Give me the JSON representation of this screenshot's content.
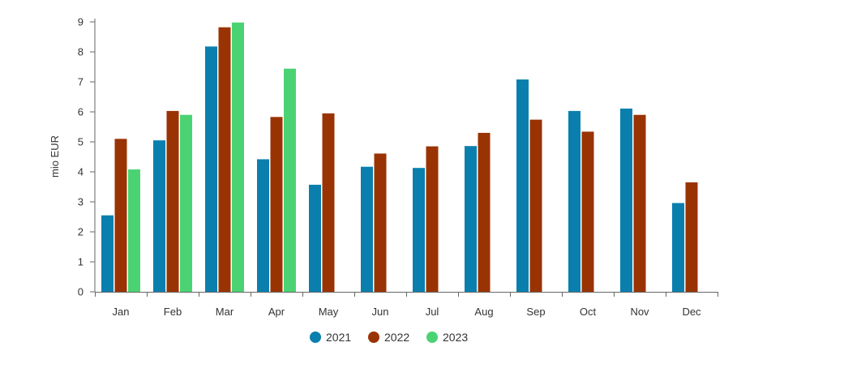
{
  "chart_data": {
    "type": "bar",
    "ylabel": "mio EUR",
    "xlabel": "",
    "ylim": [
      0,
      9
    ],
    "yticks": [
      0,
      1,
      2,
      3,
      4,
      5,
      6,
      7,
      8,
      9
    ],
    "grid": false,
    "legend_position": "bottom-center",
    "categories": [
      "Jan",
      "Feb",
      "Mar",
      "Apr",
      "May",
      "Jun",
      "Jul",
      "Aug",
      "Sep",
      "Oct",
      "Nov",
      "Dec"
    ],
    "series": [
      {
        "name": "2021",
        "color": "#0a7fae",
        "values": [
          2.55,
          5.05,
          8.18,
          4.42,
          3.57,
          4.17,
          4.13,
          4.86,
          7.08,
          6.03,
          6.11,
          2.96
        ]
      },
      {
        "name": "2022",
        "color": "#9a3303",
        "values": [
          5.1,
          6.03,
          8.82,
          5.83,
          5.95,
          4.61,
          4.85,
          5.3,
          5.74,
          5.34,
          5.9,
          3.65
        ]
      },
      {
        "name": "2023",
        "color": "#4bd373",
        "values": [
          4.08,
          5.9,
          8.98,
          7.44,
          null,
          null,
          null,
          null,
          null,
          null,
          null,
          null
        ]
      }
    ]
  }
}
